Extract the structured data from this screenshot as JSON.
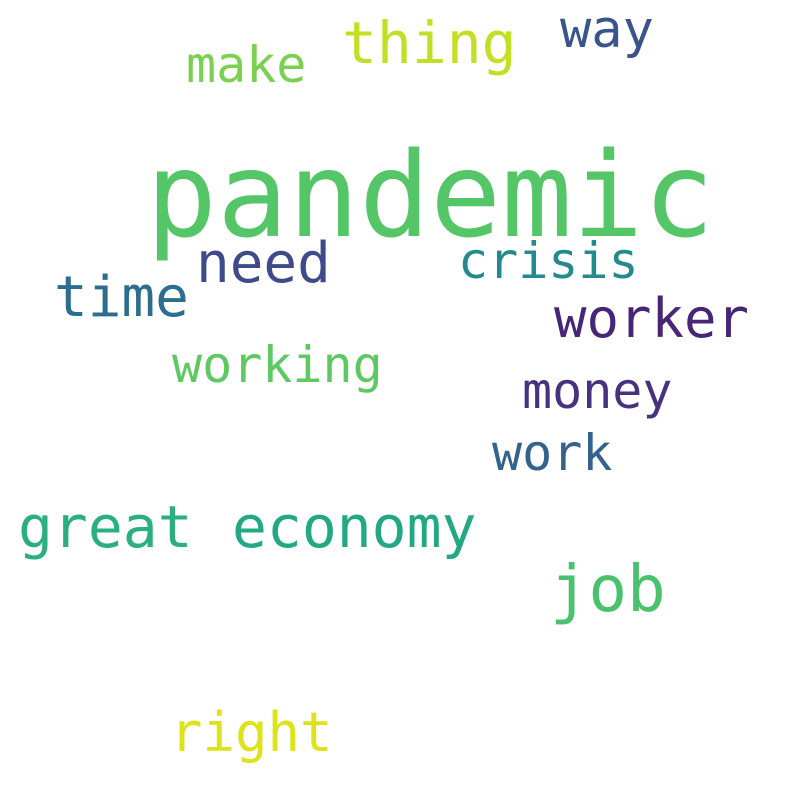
{
  "words": [
    {
      "text": "pandemic",
      "color": "#55c667"
    },
    {
      "text": "thing",
      "color": "#c2df23"
    },
    {
      "text": "way",
      "color": "#39558c"
    },
    {
      "text": "make",
      "color": "#7ad151"
    },
    {
      "text": "need",
      "color": "#3e4a89"
    },
    {
      "text": "crisis",
      "color": "#238a8d"
    },
    {
      "text": "time",
      "color": "#2d6e8e"
    },
    {
      "text": "worker",
      "color": "#482677"
    },
    {
      "text": "working",
      "color": "#5ec962"
    },
    {
      "text": "money",
      "color": "#46327e"
    },
    {
      "text": "work",
      "color": "#33638d"
    },
    {
      "text": "great",
      "color": "#2ab07f"
    },
    {
      "text": "economy",
      "color": "#22a884"
    },
    {
      "text": "job",
      "color": "#4ac16d"
    },
    {
      "text": "right",
      "color": "#dde318"
    }
  ]
}
